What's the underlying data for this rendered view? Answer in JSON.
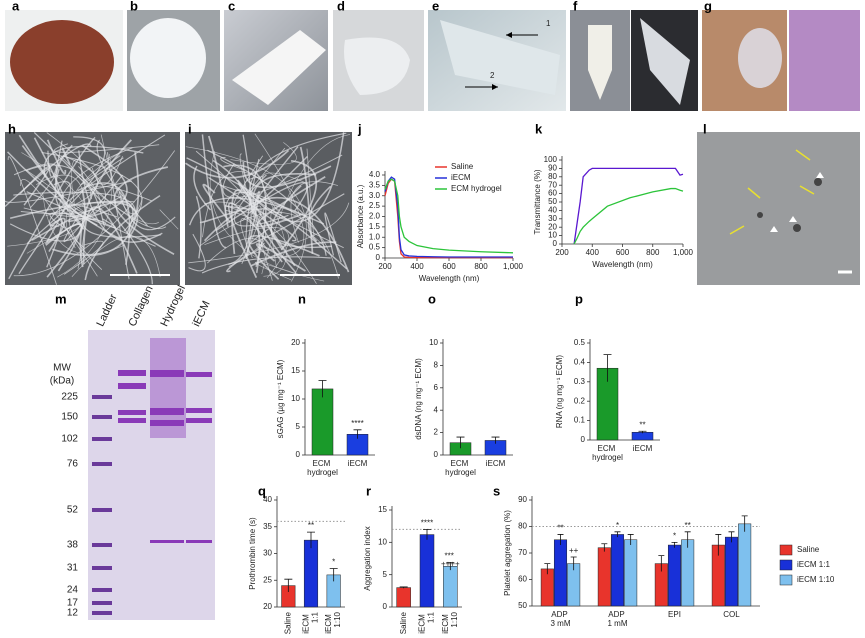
{
  "panels": [
    "a",
    "b",
    "c",
    "d",
    "e",
    "f",
    "g",
    "h",
    "i",
    "j",
    "k",
    "l",
    "m",
    "n",
    "o",
    "p",
    "q",
    "r",
    "s"
  ],
  "photo_annotations": [
    "1",
    "2"
  ],
  "gel": {
    "lanes": [
      "Ladder",
      "Collagen",
      "Hydrogel",
      "iECM"
    ],
    "mw_title": "MW",
    "mw_unit": "(kDa)",
    "markers": [
      225,
      150,
      102,
      76,
      52,
      38,
      31,
      24,
      17,
      12
    ]
  },
  "chart_data": [
    {
      "type": "line",
      "xlabel": "Wavelength (nm)",
      "ylabel": "Absorbance (a.u.)",
      "x": [
        200,
        220,
        240,
        260,
        280,
        290,
        300,
        320,
        350,
        400,
        500,
        600,
        800,
        1000
      ],
      "xlim": [
        200,
        1000
      ],
      "xticks": [
        200,
        400,
        600,
        800,
        {
          "value": 1000,
          "label": "1,000"
        }
      ],
      "ylim": [
        0,
        4
      ],
      "yticks": [
        0,
        0.5,
        {
          "value": 1,
          "label": "1.0"
        },
        1.5,
        {
          "value": 2,
          "label": "2.0"
        },
        2.5,
        {
          "value": 3,
          "label": "3.0"
        },
        3.5,
        {
          "value": 4,
          "label": "4.0"
        }
      ],
      "legend": true,
      "series": [
        {
          "name": "Saline",
          "color": "#e8342c",
          "values": [
            3.0,
            3.6,
            3.8,
            3.7,
            2.0,
            0.8,
            0.2,
            0.05,
            0.03,
            0.02,
            0.02,
            0.02,
            0.02,
            0.02
          ]
        },
        {
          "name": "iECM",
          "color": "#2630d8",
          "values": [
            3.2,
            3.7,
            3.9,
            3.8,
            2.5,
            1.0,
            0.4,
            0.15,
            0.1,
            0.08,
            0.06,
            0.05,
            0.05,
            0.05
          ]
        },
        {
          "name": "ECM hydrogel",
          "color": "#2cc43a",
          "values": [
            3.3,
            3.7,
            3.8,
            3.7,
            3.0,
            2.0,
            1.5,
            1.0,
            0.8,
            0.6,
            0.45,
            0.38,
            0.3,
            0.25
          ]
        }
      ]
    },
    {
      "type": "line",
      "xlabel": "Wavelength (nm)",
      "ylabel": "Transmittance (%)",
      "x": [
        280,
        300,
        320,
        340,
        380,
        400,
        500,
        650,
        800,
        920,
        950,
        980,
        1000
      ],
      "xlim": [
        200,
        1000
      ],
      "xticks": [
        200,
        400,
        600,
        800,
        {
          "value": 1000,
          "label": "1,000"
        }
      ],
      "ylim": [
        0,
        100
      ],
      "yticks": [
        0,
        10,
        20,
        30,
        40,
        50,
        60,
        70,
        80,
        90,
        100
      ],
      "legend": false,
      "series": [
        {
          "name": "iECM",
          "color": "#5a18d0",
          "values": [
            0,
            25,
            50,
            80,
            88,
            90,
            90,
            90,
            90,
            90,
            90,
            82,
            83
          ]
        },
        {
          "name": "ECM hydrogel",
          "color": "#2cc43a",
          "values": [
            0,
            7,
            15,
            20,
            27,
            30,
            45,
            55,
            62,
            66,
            66,
            64,
            63
          ]
        }
      ]
    },
    {
      "type": "bar",
      "ylabel": "sGAG (µg mg⁻¹ ECM)",
      "categories": [
        "ECM hydrogel",
        "iECM"
      ],
      "values": [
        11.8,
        3.7
      ],
      "errors": [
        1.5,
        0.8
      ],
      "colors": [
        "#1a9a2a",
        "#1a3ee0"
      ],
      "sig_labels": [
        null,
        "****"
      ],
      "ylim": [
        0,
        20
      ],
      "yticks": [
        0,
        5,
        10,
        15,
        20
      ]
    },
    {
      "type": "bar",
      "ylabel": "dsDNA (ng mg⁻¹ ECM)",
      "categories": [
        "ECM hydrogel",
        "iECM"
      ],
      "values": [
        1.1,
        1.3
      ],
      "errors": [
        0.5,
        0.3
      ],
      "colors": [
        "#1a9a2a",
        "#1a3ee0"
      ],
      "ylim": [
        0,
        10
      ],
      "yticks": [
        0,
        2,
        4,
        6,
        8,
        10
      ]
    },
    {
      "type": "bar",
      "ylabel": "RNA (ng mg⁻¹ ECM)",
      "categories": [
        "ECM hydrogel",
        "iECM"
      ],
      "values": [
        0.37,
        0.04
      ],
      "errors": [
        0.07,
        0.005
      ],
      "colors": [
        "#1a9a2a",
        "#1a3ee0"
      ],
      "sig_labels": [
        null,
        "**"
      ],
      "ylim": [
        0,
        0.5
      ],
      "yticks": [
        0,
        0.1,
        0.2,
        0.3,
        0.4,
        0.5
      ]
    },
    {
      "type": "bar",
      "ylabel": "Prothrombin time (s)",
      "categories": [
        "Saline",
        "iECM 1:1",
        "iECM 1:10"
      ],
      "values": [
        24,
        32.5,
        26
      ],
      "errors": [
        1.2,
        1.5,
        1.2
      ],
      "colors": [
        "#e8342c",
        "#1830d8",
        "#7ec0ee"
      ],
      "sig_labels": [
        null,
        "**",
        "*"
      ],
      "reference": 36,
      "rotate_categories": true,
      "ylim": [
        20,
        40
      ],
      "yticks": [
        20,
        25,
        30,
        35,
        40
      ]
    },
    {
      "type": "bar",
      "ylabel": "Aggregation index",
      "categories": [
        "Saline",
        "iECM 1:1",
        "iECM 1:10"
      ],
      "values": [
        3,
        11.2,
        6.3
      ],
      "errors": [
        0.1,
        0.8,
        0.6
      ],
      "colors": [
        "#e8342c",
        "#1830d8",
        "#7ec0ee"
      ],
      "sig_labels": [
        null,
        "****",
        "*** ++++"
      ],
      "reference": 12,
      "rotate_categories": true,
      "ylim": [
        0,
        15
      ],
      "yticks": [
        0,
        5,
        10,
        15
      ]
    },
    {
      "type": "grouped-bar",
      "ylabel": "Platelet aggregation (%)",
      "categories": [
        "ADP 3 mM",
        "ADP 1 mM",
        "EPI",
        "COL"
      ],
      "reference": 80,
      "ylim": [
        50,
        90
      ],
      "yticks": [
        50,
        60,
        70,
        80,
        90
      ],
      "legend": true,
      "series": [
        {
          "name": "Saline",
          "color": "#e8342c",
          "values": [
            64,
            72,
            66,
            73
          ],
          "errors": [
            2,
            1.5,
            3,
            4
          ]
        },
        {
          "name": "iECM 1:1",
          "color": "#1830d8",
          "values": [
            75,
            77,
            73,
            76
          ],
          "errors": [
            2,
            1,
            1,
            2
          ],
          "sig_labels": [
            "**",
            "*",
            "*",
            null
          ]
        },
        {
          "name": "iECM 1:10",
          "color": "#7ec0ee",
          "values": [
            66,
            75,
            75,
            81
          ],
          "errors": [
            2.5,
            2,
            3,
            3
          ],
          "sig_labels": [
            "++",
            null,
            "**",
            null
          ]
        }
      ]
    }
  ]
}
